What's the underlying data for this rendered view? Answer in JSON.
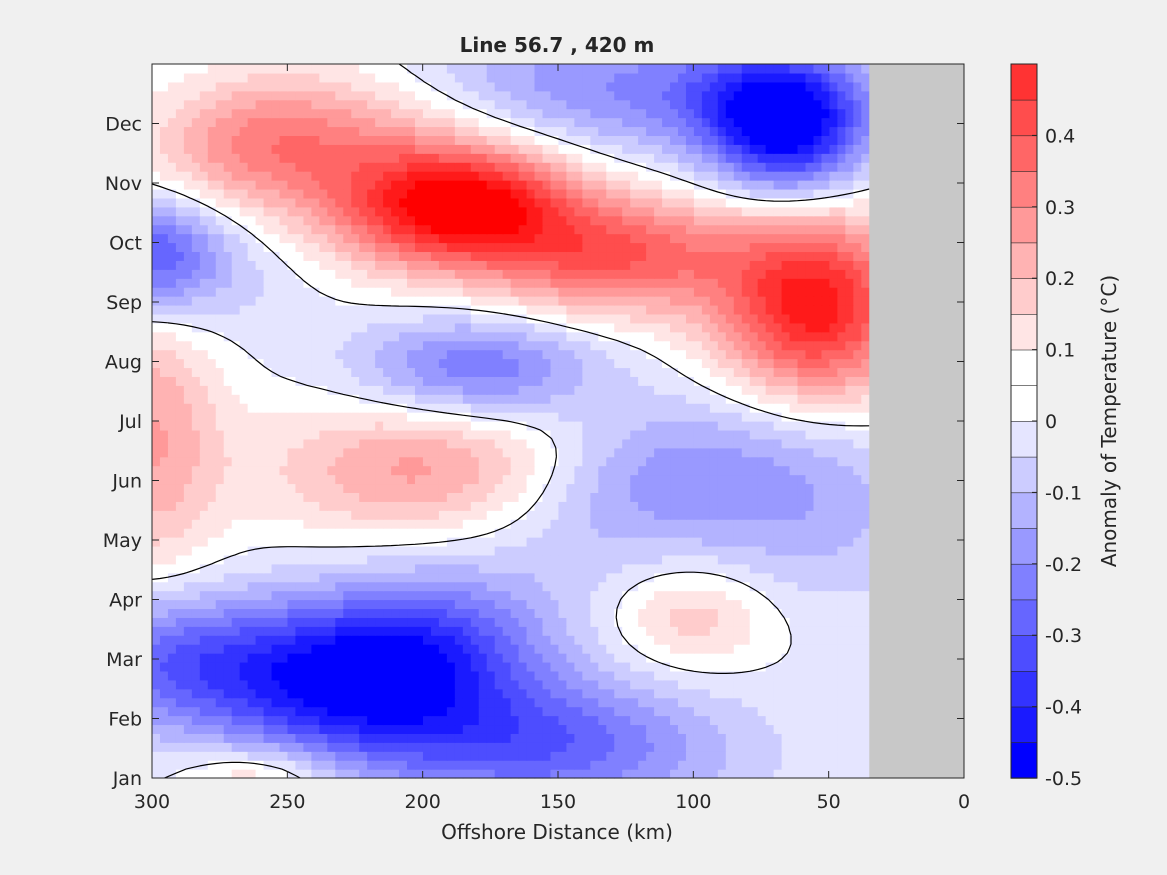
{
  "chart_data": {
    "type": "heatmap",
    "subtype": "filled-contour",
    "title": "Line 56.7 , 420 m",
    "xlabel": "Offshore Distance (km)",
    "ylabel": "",
    "x_axis_reversed": true,
    "xlim": [
      300,
      0
    ],
    "xticks": [
      300,
      250,
      200,
      150,
      100,
      50,
      0
    ],
    "ylim": [
      1,
      13
    ],
    "yticks": [
      {
        "value": 1,
        "label": "Jan"
      },
      {
        "value": 2,
        "label": "Feb"
      },
      {
        "value": 3,
        "label": "Mar"
      },
      {
        "value": 4,
        "label": "Apr"
      },
      {
        "value": 5,
        "label": "May"
      },
      {
        "value": 6,
        "label": "Jun"
      },
      {
        "value": 7,
        "label": "Jul"
      },
      {
        "value": 8,
        "label": "Aug"
      },
      {
        "value": 9,
        "label": "Sep"
      },
      {
        "value": 10,
        "label": "Oct"
      },
      {
        "value": 11,
        "label": "Nov"
      },
      {
        "value": 12,
        "label": "Dec"
      }
    ],
    "no_data_region_x": [
      0,
      35
    ],
    "no_data_color": "#c8c8c8",
    "zero_contour_color": "#000000",
    "colorbar": {
      "label": "Anomaly of Temperature (°C)",
      "range": [
        -0.5,
        0.5
      ],
      "ticks": [
        {
          "value": 0.4,
          "label": "0.4"
        },
        {
          "value": 0.3,
          "label": "0.3"
        },
        {
          "value": 0.2,
          "label": "0.2"
        },
        {
          "value": 0.1,
          "label": "0.1"
        },
        {
          "value": 0,
          "label": "0"
        },
        {
          "value": -0.1,
          "label": "-0.1"
        },
        {
          "value": -0.2,
          "label": "-0.2"
        },
        {
          "value": -0.3,
          "label": "-0.3"
        },
        {
          "value": -0.4,
          "label": "-0.4"
        },
        {
          "value": -0.5,
          "label": "-0.5"
        }
      ],
      "levels": [
        -0.5,
        -0.45,
        -0.4,
        -0.35,
        -0.3,
        -0.25,
        -0.2,
        -0.15,
        -0.1,
        -0.05,
        0,
        0.05,
        0.1,
        0.15,
        0.2,
        0.25,
        0.3,
        0.35,
        0.4,
        0.45,
        0.5
      ],
      "colors": [
        "#0000ff",
        "#1a1aff",
        "#3333ff",
        "#4d4dff",
        "#6666ff",
        "#8080ff",
        "#9999ff",
        "#b3b3ff",
        "#ccccff",
        "#e5e5ff",
        "#ffffff",
        "#ffffff",
        "#ffe5e5",
        "#ffcccc",
        "#ffb3b3",
        "#ff9999",
        "#ff8080",
        "#ff6666",
        "#ff4d4d",
        "#ff3333",
        "#ff1a1a",
        "#ff0000"
      ]
    },
    "anomaly_features": [
      {
        "x": 185,
        "month": 10.6,
        "value": 0.47,
        "sx": 28,
        "sy": 0.7,
        "rot": 22
      },
      {
        "x": 225,
        "month": 11.4,
        "value": 0.25,
        "sx": 40,
        "sy": 0.9,
        "rot": 22
      },
      {
        "x": 130,
        "month": 9.8,
        "value": 0.35,
        "sx": 35,
        "sy": 0.7,
        "rot": 22
      },
      {
        "x": 55,
        "month": 8.9,
        "value": 0.48,
        "sx": 25,
        "sy": 1.1,
        "rot": 0
      },
      {
        "x": 265,
        "month": 11.8,
        "value": 0.15,
        "sx": 25,
        "sy": 0.8,
        "rot": 15
      },
      {
        "x": 65,
        "month": 11.7,
        "value": -0.38,
        "sx": 20,
        "sy": 0.7,
        "rot": 0
      },
      {
        "x": 70,
        "month": 12.5,
        "value": -0.3,
        "sx": 25,
        "sy": 0.6,
        "rot": 0
      },
      {
        "x": 140,
        "month": 12.6,
        "value": -0.2,
        "sx": 45,
        "sy": 0.9,
        "rot": 20
      },
      {
        "x": 300,
        "month": 9.8,
        "value": -0.28,
        "sx": 18,
        "sy": 0.7,
        "rot": 0
      },
      {
        "x": 280,
        "month": 9.8,
        "value": -0.08,
        "sx": 30,
        "sy": 1.0,
        "rot": 0
      },
      {
        "x": 180,
        "month": 7.9,
        "value": -0.25,
        "sx": 30,
        "sy": 0.6,
        "rot": 22
      },
      {
        "x": 115,
        "month": 6.0,
        "value": -0.18,
        "sx": 35,
        "sy": 1.0,
        "rot": 22
      },
      {
        "x": 55,
        "month": 5.6,
        "value": -0.12,
        "sx": 30,
        "sy": 1.2,
        "rot": 0
      },
      {
        "x": 300,
        "month": 6.8,
        "value": 0.2,
        "sx": 18,
        "sy": 1.7,
        "rot": 0
      },
      {
        "x": 200,
        "month": 6.2,
        "value": 0.22,
        "sx": 40,
        "sy": 0.8,
        "rot": 22
      },
      {
        "x": 100,
        "month": 3.7,
        "value": 0.14,
        "sx": 20,
        "sy": 0.6,
        "rot": 0
      },
      {
        "x": 215,
        "month": 2.9,
        "value": -0.48,
        "sx": 35,
        "sy": 1.0,
        "rot": 22
      },
      {
        "x": 290,
        "month": 3.0,
        "value": -0.28,
        "sx": 35,
        "sy": 0.8,
        "rot": 0
      },
      {
        "x": 160,
        "month": 1.6,
        "value": -0.3,
        "sx": 50,
        "sy": 0.8,
        "rot": 15
      },
      {
        "x": 260,
        "month": 1.0,
        "value": 0.15,
        "sx": 20,
        "sy": 0.4,
        "rot": 0
      }
    ]
  }
}
